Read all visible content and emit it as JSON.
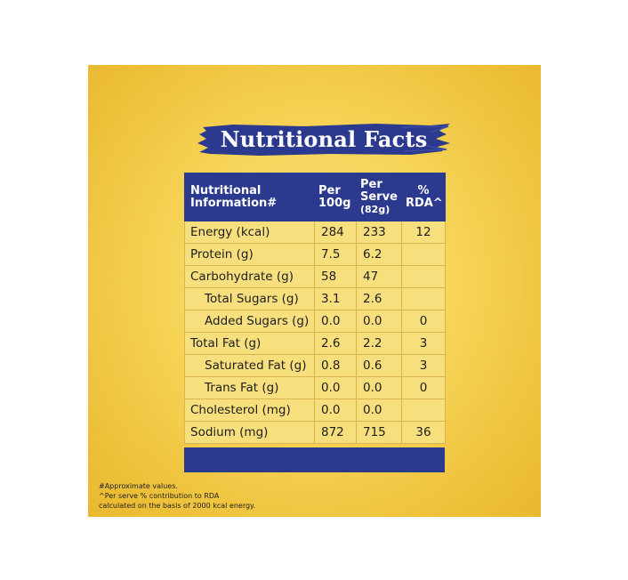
{
  "title": "Nutritional Facts",
  "table": {
    "headers": {
      "col1": [
        "Nutritional",
        "Information#"
      ],
      "col2": [
        "Per",
        "100g"
      ],
      "col3": [
        "Per",
        "Serve",
        "(82g)"
      ],
      "col4": [
        "%",
        "RDA^"
      ]
    },
    "rows": [
      {
        "label": "Energy (kcal)",
        "per100": "284",
        "perServe": "233",
        "rda": "12",
        "indent": false
      },
      {
        "label": "Protein (g)",
        "per100": "7.5",
        "perServe": "6.2",
        "rda": "",
        "indent": false
      },
      {
        "label": "Carbohydrate (g)",
        "per100": "58",
        "perServe": "47",
        "rda": "",
        "indent": false
      },
      {
        "label": "Total Sugars (g)",
        "per100": "3.1",
        "perServe": "2.6",
        "rda": "",
        "indent": true
      },
      {
        "label": "Added Sugars (g)",
        "per100": "0.0",
        "perServe": "0.0",
        "rda": "0",
        "indent": true
      },
      {
        "label": "Total Fat (g)",
        "per100": "2.6",
        "perServe": "2.2",
        "rda": "3",
        "indent": false
      },
      {
        "label": "Saturated Fat (g)",
        "per100": "0.8",
        "perServe": "0.6",
        "rda": "3",
        "indent": true
      },
      {
        "label": "Trans Fat (g)",
        "per100": "0.0",
        "perServe": "0.0",
        "rda": "0",
        "indent": true
      },
      {
        "label": "Cholesterol (mg)",
        "per100": "0.0",
        "perServe": "0.0",
        "rda": "",
        "indent": false
      },
      {
        "label": "Sodium (mg)",
        "per100": "872",
        "perServe": "715",
        "rda": "36",
        "indent": false
      }
    ]
  },
  "footnotes": [
    "#Approximate values.",
    "^Per serve % contribution to RDA",
    "calculated on the basis of 2000 kcal energy."
  ],
  "colors": {
    "header_blue": "#2b3a8f",
    "panel_yellow": "#f6d457",
    "row_yellow": "#f7df7d"
  }
}
